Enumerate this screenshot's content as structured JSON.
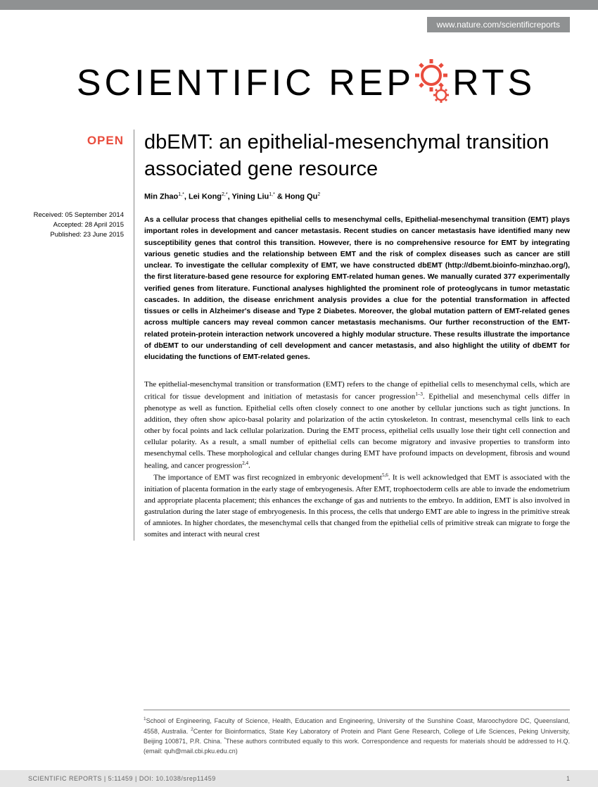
{
  "colors": {
    "accent": "#e94c3d",
    "gray_bar": "#8f9192",
    "text": "#000000",
    "footer_bg": "#e5e5e5",
    "border": "#888888"
  },
  "header": {
    "url": "www.nature.com/scientificreports",
    "journal_word1": "SCIENTIFIC",
    "journal_word2_pre": "REP",
    "journal_word2_post": "RTS"
  },
  "sidebar": {
    "open_label": "OPEN",
    "received": "Received: 05 September 2014",
    "accepted": "Accepted: 28 April 2015",
    "published": "Published: 23 June 2015"
  },
  "article": {
    "title": "dbEMT: an epithelial-mesenchymal transition associated gene resource",
    "authors_html": "Min Zhao<sup>1,*</sup>, Lei Kong<sup>2,*</sup>, Yining Liu<sup>1,*</sup> & Hong Qu<sup>2</sup>",
    "abstract": "As a cellular process that changes epithelial cells to mesenchymal cells, Epithelial-mesenchymal transition (EMT) plays important roles in development and cancer metastasis. Recent studies on cancer metastasis have identified many new susceptibility genes that control this transition. However, there is no comprehensive resource for EMT by integrating various genetic studies and the relationship between EMT and the risk of complex diseases such as cancer are still unclear. To investigate the cellular complexity of EMT, we have constructed dbEMT (http://dbemt.bioinfo-minzhao.org/), the first literature-based gene resource for exploring EMT-related human genes. We manually curated 377 experimentally verified genes from literature. Functional analyses highlighted the prominent role of proteoglycans in tumor metastatic cascades. In addition, the disease enrichment analysis provides a clue for the potential transformation in affected tissues or cells in Alzheimer's disease and Type 2 Diabetes. Moreover, the global mutation pattern of EMT-related genes across multiple cancers may reveal common cancer metastasis mechanisms. Our further reconstruction of the EMT-related protein-protein interaction network uncovered a highly modular structure. These results illustrate the importance of dbEMT to our understanding of cell development and cancer metastasis, and also highlight the utility of dbEMT for elucidating the functions of EMT-related genes.",
    "body_para1": "The epithelial-mesenchymal transition or transformation (EMT) refers to the change of epithelial cells to mesenchymal cells, which are critical for tissue development and initiation of metastasis for cancer progression<sup>1–3</sup>. Epithelial and mesenchymal cells differ in phenotype as well as function. Epithelial cells often closely connect to one another by cellular junctions such as tight junctions. In addition, they often show apico-basal polarity and polarization of the actin cytoskeleton. In contrast, mesenchymal cells link to each other by focal points and lack cellular polarization. During the EMT process, epithelial cells usually lose their tight cell connection and cellular polarity. As a result, a small number of epithelial cells can become migratory and invasive properties to transform into mesenchymal cells. These morphological and cellular changes during EMT have profound impacts on development, fibrosis and wound healing, and cancer progression<sup>2,4</sup>.",
    "body_para2": "The importance of EMT was first recognized in embryonic development<sup>5,6</sup>. It is well acknowledged that EMT is associated with the initiation of placenta formation in the early stage of embryogenesis. After EMT, trophoectoderm cells are able to invade the endometrium and appropriate placenta placement; this enhances the exchange of gas and nutrients to the embryo. In addition, EMT is also involved in gastrulation during the later stage of embryogenesis. In this process, the cells that undergo EMT are able to ingress in the primitive streak of amniotes. In higher chordates, the mesenchymal cells that changed from the epithelial cells of primitive streak can migrate to forge the somites and interact with neural crest",
    "affiliations_html": "<sup>1</sup>School of Engineering, Faculty of Science, Health, Education and Engineering, University of the Sunshine Coast, Maroochydore DC, Queensland, 4558, Australia. <sup>2</sup>Center for Bioinformatics, State Key Laboratory of Protein and Plant Gene Research, College of Life Sciences, Peking University, Beijing 100871, P.R. China. <sup>*</sup>These authors contributed equally to this work. Correspondence and requests for materials should be addressed to H.Q. (email: quh@mail.cbi.pku.edu.cn)"
  },
  "footer": {
    "citation": "SCIENTIFIC REPORTS | 5:11459 | DOI: 10.1038/srep11459",
    "page": "1"
  }
}
